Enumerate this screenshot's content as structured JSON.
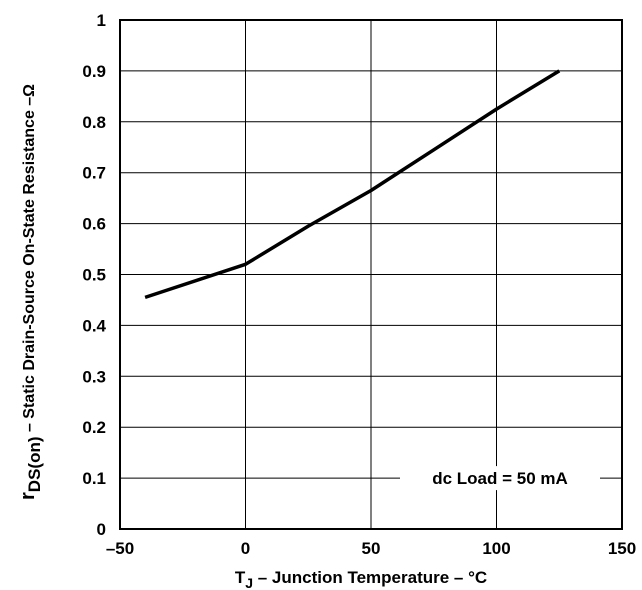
{
  "chart_data": {
    "type": "line",
    "xlabel": {
      "symbol": "T",
      "subscript": "J",
      "text": " – Junction Temperature – °C"
    },
    "ylabel": {
      "symbol": "r",
      "subscript": "DS(on)",
      "text": " – Static Drain-Source On-State Resistance –Ω"
    },
    "xlim": [
      -50,
      150
    ],
    "ylim": [
      0,
      1
    ],
    "x_ticks": [
      "–50",
      "0",
      "50",
      "100",
      "150"
    ],
    "x_tick_values": [
      -50,
      0,
      50,
      100,
      150
    ],
    "y_ticks": [
      "0",
      "0.1",
      "0.2",
      "0.3",
      "0.4",
      "0.5",
      "0.6",
      "0.7",
      "0.8",
      "0.9",
      "1"
    ],
    "y_tick_values": [
      0,
      0.1,
      0.2,
      0.3,
      0.4,
      0.5,
      0.6,
      0.7,
      0.8,
      0.9,
      1
    ],
    "grid": true,
    "annotation": "dc Load = 50 mA",
    "series": [
      {
        "x": [
          -40,
          0,
          25,
          50,
          75,
          100,
          125
        ],
        "y": [
          0.455,
          0.52,
          0.595,
          0.665,
          0.745,
          0.825,
          0.9
        ]
      }
    ],
    "line_color": "#000000"
  }
}
